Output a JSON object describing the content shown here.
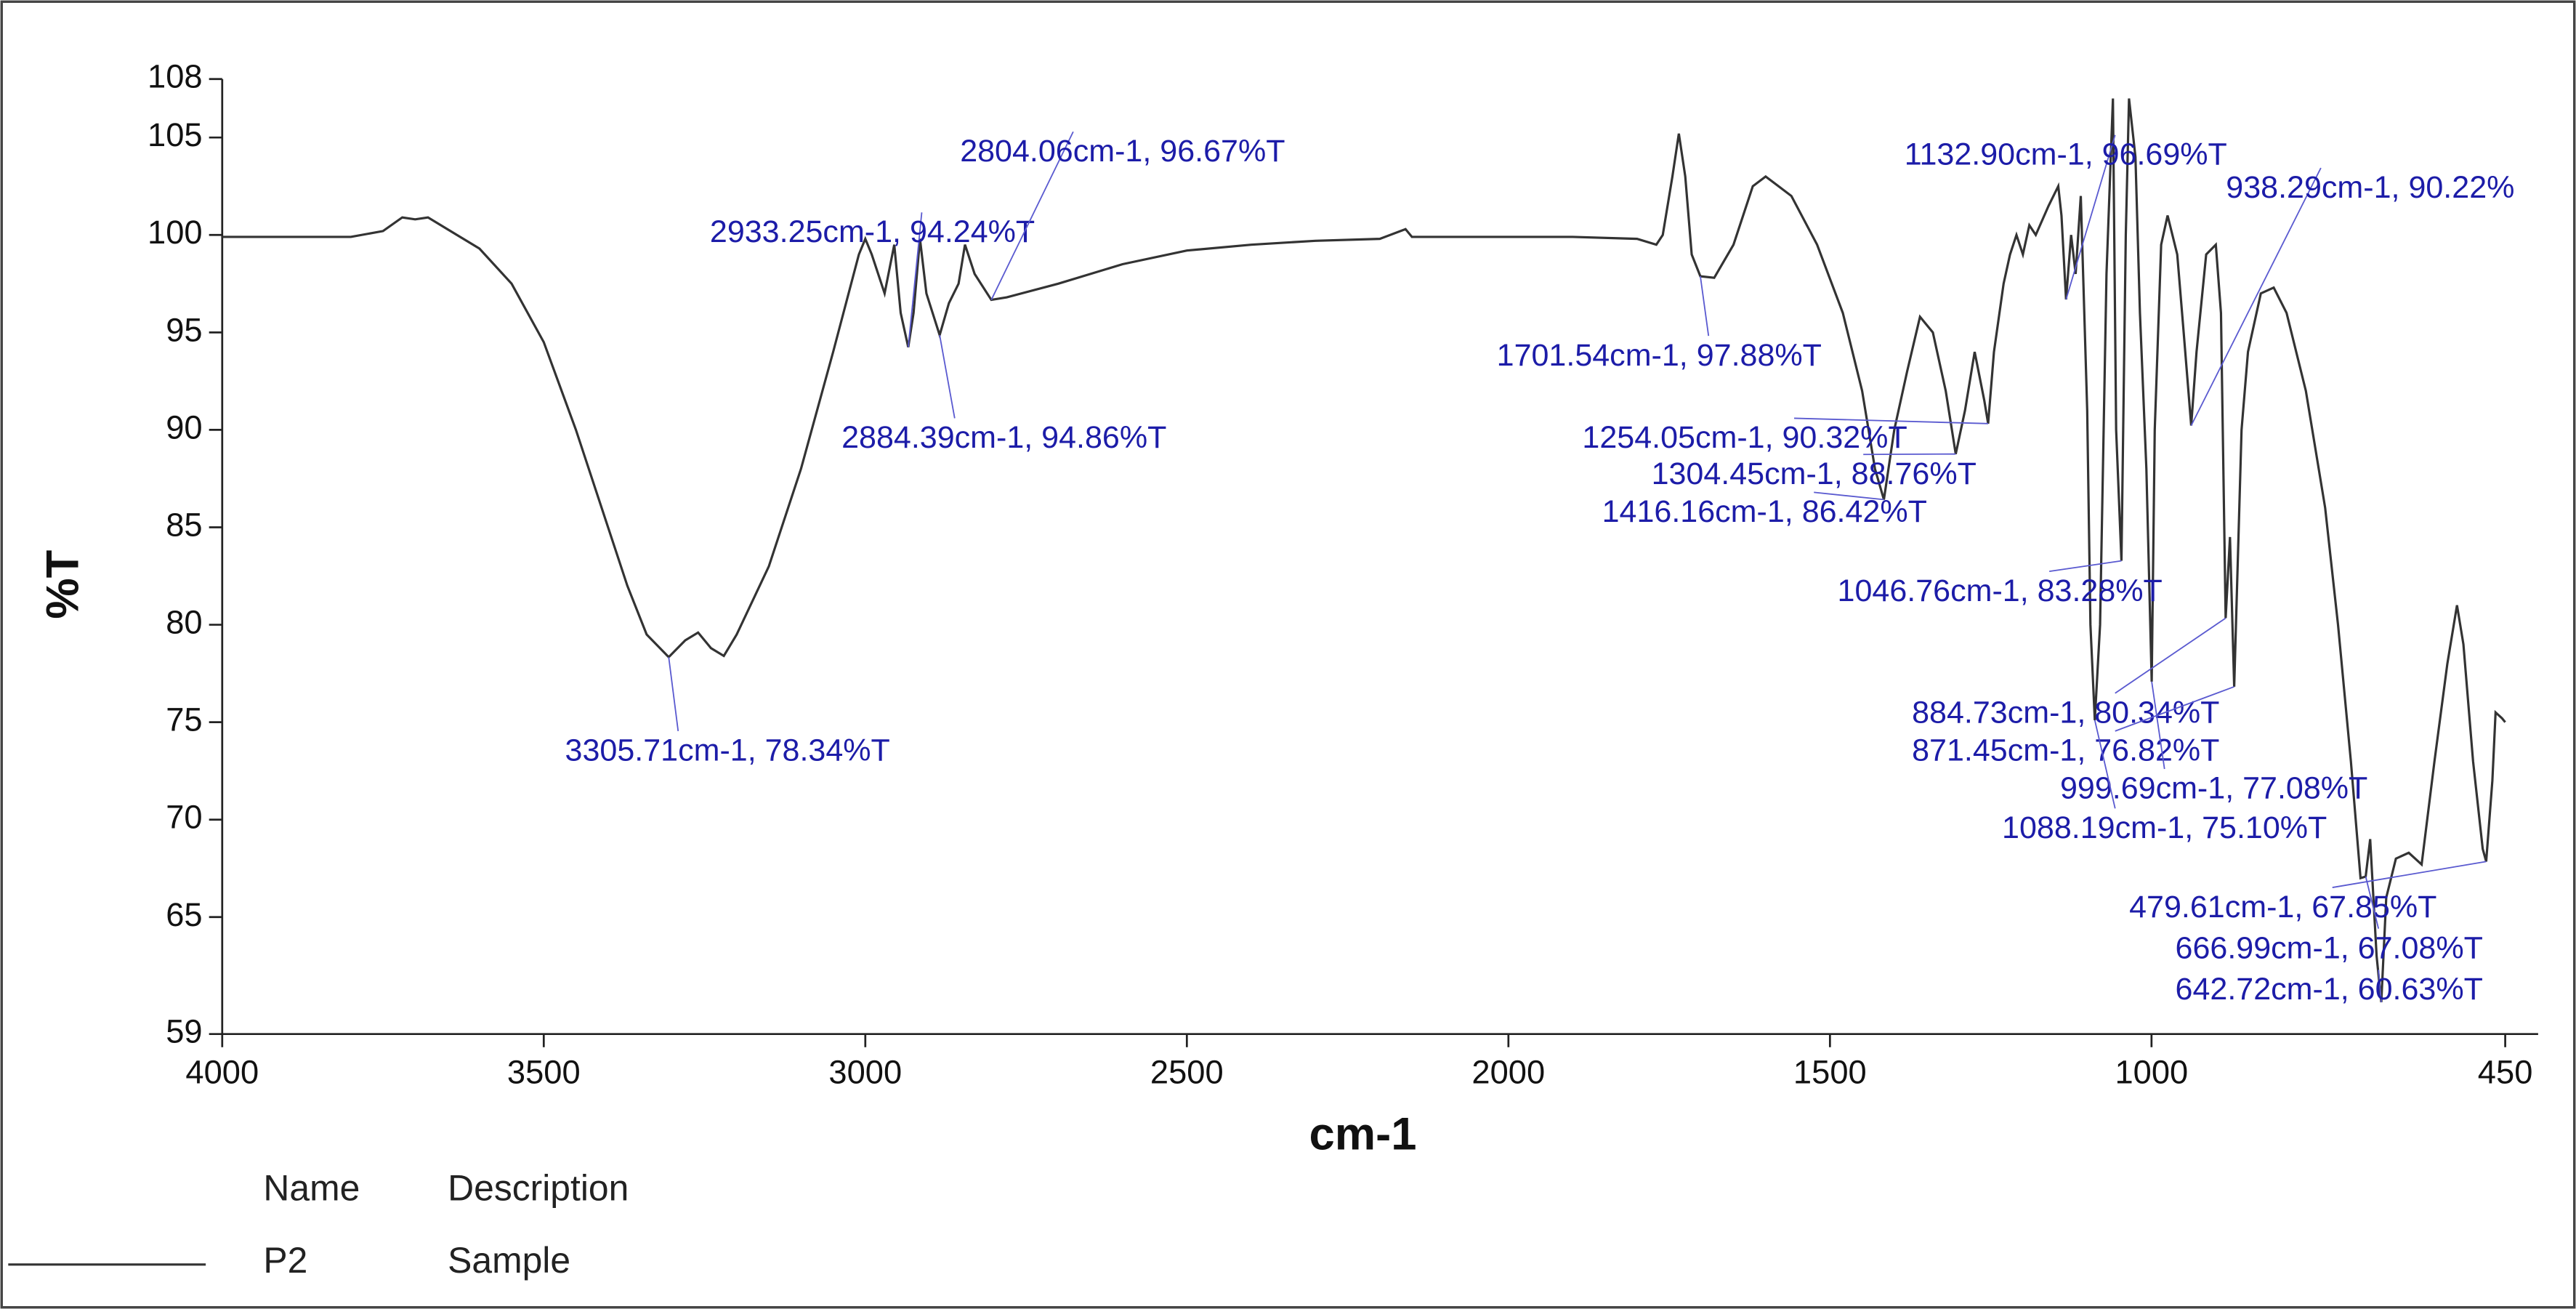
{
  "chart_data": {
    "type": "line",
    "xlabel": "cm-1",
    "ylabel": "%T",
    "xlim": [
      4000,
      450
    ],
    "ylim": [
      59,
      108
    ],
    "xticks": [
      4000,
      3500,
      3000,
      2500,
      2000,
      1500,
      1000,
      450
    ],
    "yticks": [
      59,
      65,
      70,
      75,
      80,
      85,
      90,
      95,
      100,
      105,
      108
    ],
    "x": [
      4000,
      3800,
      3750,
      3720,
      3700,
      3680,
      3650,
      3600,
      3550,
      3500,
      3450,
      3400,
      3370,
      3340,
      3305.71,
      3280,
      3260,
      3240,
      3220,
      3200,
      3150,
      3100,
      3050,
      3010,
      3000,
      2990,
      2970,
      2955,
      2945,
      2933.25,
      2925,
      2915,
      2905,
      2884.39,
      2870,
      2855,
      2845,
      2830,
      2804.06,
      2780,
      2700,
      2600,
      2500,
      2400,
      2300,
      2200,
      2160,
      2150,
      2000,
      1900,
      1800,
      1770,
      1760,
      1745,
      1735,
      1725,
      1715,
      1701.54,
      1680,
      1650,
      1620,
      1600,
      1560,
      1520,
      1480,
      1450,
      1430,
      1416.16,
      1400,
      1380,
      1360,
      1340,
      1320,
      1304.45,
      1290,
      1275,
      1260,
      1254.05,
      1245,
      1230,
      1220,
      1210,
      1200,
      1190,
      1180,
      1160,
      1145,
      1140,
      1132.9,
      1125,
      1118,
      1110,
      1100,
      1095,
      1088.19,
      1080,
      1070,
      1060,
      1055,
      1046.76,
      1040,
      1035,
      1025,
      1018,
      1008,
      999.69,
      995,
      985,
      975,
      960,
      950,
      938.29,
      930,
      915,
      900,
      892,
      884.73,
      878,
      871.45,
      860,
      850,
      830,
      810,
      790,
      760,
      730,
      710,
      690,
      675,
      666.99,
      660,
      650,
      642.72,
      635,
      620,
      600,
      580,
      560,
      540,
      525,
      515,
      500,
      485,
      479.61,
      470,
      465,
      455,
      450
    ],
    "series": [
      {
        "name": "P2",
        "description": "Sample",
        "color": "#333333",
        "values": [
          99.9,
          99.9,
          100.2,
          100.9,
          100.8,
          100.9,
          100.3,
          99.3,
          97.5,
          94.5,
          90,
          85,
          82,
          79.5,
          78.34,
          79.2,
          79.6,
          78.8,
          78.4,
          79.5,
          83,
          88,
          94,
          99,
          99.8,
          99,
          97,
          99.5,
          96,
          94.24,
          96,
          99.8,
          97,
          94.86,
          96.5,
          97.5,
          99.5,
          98,
          96.67,
          96.8,
          97.5,
          98.5,
          99.2,
          99.5,
          99.7,
          99.8,
          100.3,
          99.9,
          99.9,
          99.9,
          99.8,
          99.5,
          100,
          103,
          105.2,
          103,
          99,
          97.88,
          97.8,
          99.5,
          102.5,
          103,
          102,
          99.5,
          96,
          92,
          88,
          86.42,
          90,
          93,
          95.8,
          95,
          92,
          88.76,
          91,
          94,
          91.5,
          90.32,
          94,
          97.5,
          99,
          100,
          99,
          100.5,
          100,
          101.5,
          102.5,
          101,
          96.69,
          100,
          98,
          102,
          91,
          80,
          75.1,
          80,
          98,
          107,
          90,
          83.28,
          100,
          107,
          104,
          96,
          88,
          77.08,
          90,
          99.5,
          101,
          99,
          95,
          90.22,
          94,
          99,
          99.5,
          96,
          80.34,
          84.5,
          76.82,
          90,
          94,
          97,
          97.3,
          96,
          92,
          86,
          80,
          73,
          67,
          67.08,
          69,
          63,
          60.63,
          66,
          68,
          68.3,
          67.7,
          73,
          78,
          81,
          79,
          73,
          68.5,
          67.85,
          72,
          75.5,
          75.2,
          75
        ]
      }
    ],
    "annotations": [
      {
        "x": 3305.71,
        "y": 78.34,
        "label": "3305.71cm-1, 78.34%T"
      },
      {
        "x": 2933.25,
        "y": 94.24,
        "label": "2933.25cm-1, 94.24%T"
      },
      {
        "x": 2804.06,
        "y": 96.67,
        "label": "2804.06cm-1, 96.67%T"
      },
      {
        "x": 2884.39,
        "y": 94.86,
        "label": "2884.39cm-1, 94.86%T"
      },
      {
        "x": 1701.54,
        "y": 97.88,
        "label": "1701.54cm-1, 97.88%T"
      },
      {
        "x": 1254.05,
        "y": 90.32,
        "label": "1254.05cm-1, 90.32%T"
      },
      {
        "x": 1304.45,
        "y": 88.76,
        "label": "1304.45cm-1, 88.76%T"
      },
      {
        "x": 1416.16,
        "y": 86.42,
        "label": "1416.16cm-1, 86.42%T"
      },
      {
        "x": 1132.9,
        "y": 96.69,
        "label": "1132.90cm-1, 96.69%T"
      },
      {
        "x": 938.29,
        "y": 90.22,
        "label": "938.29cm-1, 90.22%"
      },
      {
        "x": 1046.76,
        "y": 83.28,
        "label": "1046.76cm-1, 83.28%T"
      },
      {
        "x": 884.73,
        "y": 80.34,
        "label": "884.73cm-1, 80.34%T"
      },
      {
        "x": 871.45,
        "y": 76.82,
        "label": "871.45cm-1, 76.82%T"
      },
      {
        "x": 999.69,
        "y": 77.08,
        "label": "999.69cm-1, 77.08%T"
      },
      {
        "x": 1088.19,
        "y": 75.1,
        "label": "1088.19cm-1, 75.10%T"
      },
      {
        "x": 479.61,
        "y": 67.85,
        "label": "479.61cm-1, 67.85%T"
      },
      {
        "x": 666.99,
        "y": 67.08,
        "label": "666.99cm-1, 67.08%T"
      },
      {
        "x": 642.72,
        "y": 60.63,
        "label": "642.72cm-1, 60.63%T"
      }
    ],
    "legend_headers": [
      "Name",
      "Description"
    ]
  }
}
